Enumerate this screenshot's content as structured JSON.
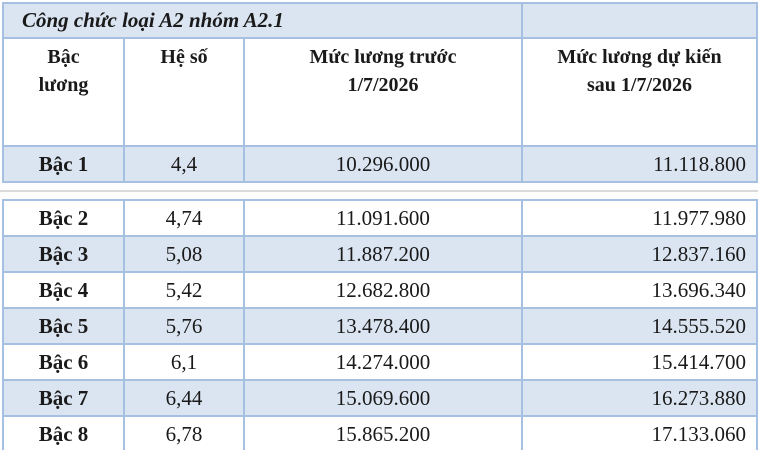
{
  "table": {
    "title": "Công chức loại A2 nhóm A2.1",
    "headers": {
      "grade": "Bậc\nlương",
      "coefficient": "Hệ số",
      "before": "Mức lương trước\n1/7/2026",
      "after": "Mức lương dự kiến\nsau 1/7/2026"
    },
    "rows": [
      {
        "grade": "Bậc 1",
        "coefficient": "4,4",
        "before": "10.296.000",
        "after": "11.118.800"
      },
      {
        "grade": "Bậc 2",
        "coefficient": "4,74",
        "before": "11.091.600",
        "after": "11.977.980"
      },
      {
        "grade": "Bậc 3",
        "coefficient": "5,08",
        "before": "11.887.200",
        "after": "12.837.160"
      },
      {
        "grade": "Bậc 4",
        "coefficient": "5,42",
        "before": "12.682.800",
        "after": "13.696.340"
      },
      {
        "grade": "Bậc 5",
        "coefficient": "5,76",
        "before": "13.478.400",
        "after": "14.555.520"
      },
      {
        "grade": "Bậc 6",
        "coefficient": "6,1",
        "before": "14.274.000",
        "after": "15.414.700"
      },
      {
        "grade": "Bậc 7",
        "coefficient": "6,44",
        "before": "15.069.600",
        "after": "16.273.880"
      },
      {
        "grade": "Bậc 8",
        "coefficient": "6,78",
        "before": "15.865.200",
        "after": "17.133.060"
      }
    ]
  },
  "colors": {
    "row_highlight": "#dbe5f1",
    "table_border": "#a5c0e0",
    "seam_line": "#d9d9d9",
    "text": "#1a1a1a"
  },
  "chart_data": {
    "type": "table",
    "title": "Công chức loại A2 nhóm A2.1",
    "columns": [
      "Bậc lương",
      "Hệ số",
      "Mức lương trước 1/7/2026",
      "Mức lương dự kiến sau 1/7/2026"
    ],
    "rows": [
      [
        "Bậc 1",
        "4,4",
        "10.296.000",
        "11.118.800"
      ],
      [
        "Bậc 2",
        "4,74",
        "11.091.600",
        "11.977.980"
      ],
      [
        "Bậc 3",
        "5,08",
        "11.887.200",
        "12.837.160"
      ],
      [
        "Bậc 4",
        "5,42",
        "12.682.800",
        "13.696.340"
      ],
      [
        "Bậc 5",
        "5,76",
        "13.478.400",
        "14.555.520"
      ],
      [
        "Bậc 6",
        "6,1",
        "14.274.000",
        "15.414.700"
      ],
      [
        "Bậc 7",
        "6,44",
        "15.069.600",
        "16.273.880"
      ],
      [
        "Bậc 8",
        "6,78",
        "15.865.200",
        "17.133.060"
      ]
    ],
    "layout": "alternating row shading (light blue #dbe5f1 / white), last column right-aligned, others centered"
  }
}
